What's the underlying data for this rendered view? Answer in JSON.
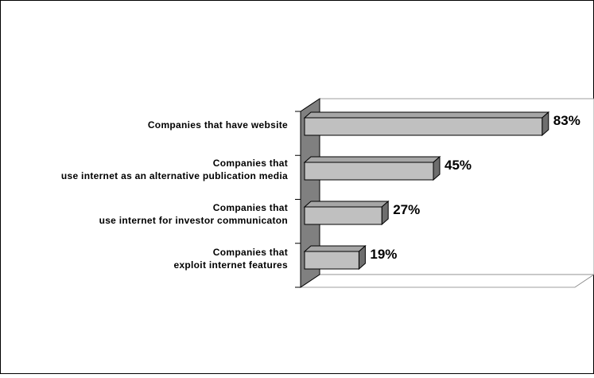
{
  "chart_data": {
    "type": "bar",
    "orientation": "horizontal",
    "style": "3d",
    "categories": [
      [
        "Companies that have website"
      ],
      [
        "Companies that",
        "use internet as an alternative publication media"
      ],
      [
        "Companies that",
        "use internet for investor communicaton"
      ],
      [
        "Companies that",
        "exploit internet features"
      ]
    ],
    "values": [
      83,
      45,
      27,
      19
    ],
    "value_labels": [
      "83%",
      "45%",
      "27%",
      "19%"
    ],
    "value_unit": "%",
    "xlim": [
      0,
      100
    ],
    "grid": false,
    "legend": "none",
    "colors": {
      "bar_front": "#c0c0c0",
      "bar_top": "#a6a6a6",
      "bar_side": "#6e6e6e",
      "wall": "#808080",
      "outline": "#000000"
    }
  }
}
